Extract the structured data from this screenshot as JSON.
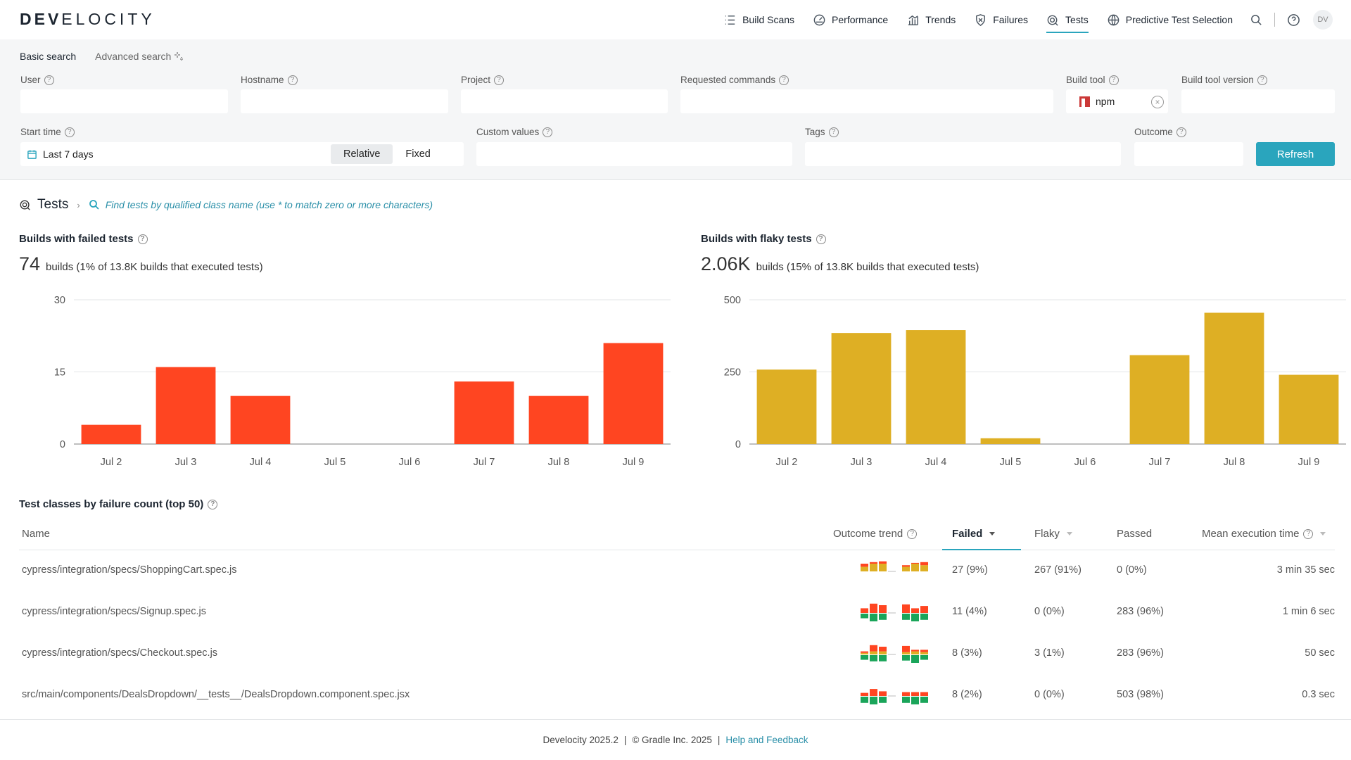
{
  "brand": {
    "logo_bold": "DEV",
    "logo_thin": "ELOCITY"
  },
  "nav": {
    "items": [
      {
        "label": "Build Scans",
        "icon": "list-icon"
      },
      {
        "label": "Performance",
        "icon": "gauge-icon"
      },
      {
        "label": "Trends",
        "icon": "bar-chart-icon"
      },
      {
        "label": "Failures",
        "icon": "shield-x-icon"
      },
      {
        "label": "Tests",
        "icon": "tests-icon"
      },
      {
        "label": "Predictive Test Selection",
        "icon": "globe-icon"
      }
    ],
    "active": "Tests",
    "avatar": "DV"
  },
  "search": {
    "tabs": {
      "basic": "Basic search",
      "advanced": "Advanced search"
    },
    "fields": {
      "user": "User",
      "hostname": "Hostname",
      "project": "Project",
      "requested_commands": "Requested commands",
      "build_tool": "Build tool",
      "build_tool_version": "Build tool version",
      "start_time": "Start time",
      "custom_values": "Custom values",
      "tags": "Tags",
      "outcome": "Outcome"
    },
    "build_tool_value": "npm",
    "start_time_value": "Last 7 days",
    "relative": "Relative",
    "fixed": "Fixed",
    "refresh": "Refresh"
  },
  "tests": {
    "title": "Tests",
    "find_placeholder": "Find tests by qualified class name (use * to match zero or more characters)"
  },
  "failed_panel": {
    "title": "Builds with failed tests",
    "count": "74",
    "summary": "builds (1% of 13.8K builds that executed tests)"
  },
  "flaky_panel": {
    "title": "Builds with flaky tests",
    "count": "2.06K",
    "summary": "builds (15% of 13.8K builds that executed tests)"
  },
  "chart_data": [
    {
      "type": "bar",
      "categories": [
        "Jul 2",
        "Jul 3",
        "Jul 4",
        "Jul 5",
        "Jul 6",
        "Jul 7",
        "Jul 8",
        "Jul 9"
      ],
      "values": [
        4,
        16,
        10,
        0,
        0,
        13,
        10,
        21
      ],
      "yticks": [
        0,
        15,
        30
      ],
      "ylim": [
        0,
        30
      ],
      "color": "#ff4521",
      "grid": true
    },
    {
      "type": "bar",
      "categories": [
        "Jul 2",
        "Jul 3",
        "Jul 4",
        "Jul 5",
        "Jul 6",
        "Jul 7",
        "Jul 8",
        "Jul 9"
      ],
      "values": [
        258,
        385,
        395,
        20,
        0,
        308,
        455,
        240
      ],
      "yticks": [
        0,
        250,
        500
      ],
      "ylim": [
        0,
        500
      ],
      "color": "#deaf24",
      "grid": true
    }
  ],
  "table": {
    "title": "Test classes by failure count (top 50)",
    "headers": {
      "name": "Name",
      "trend": "Outcome trend",
      "failed": "Failed",
      "flaky": "Flaky",
      "passed": "Passed",
      "mean": "Mean execution time"
    },
    "rows": [
      {
        "name": "cypress/integration/specs/ShoppingCart.spec.js",
        "failed": "27 (9%)",
        "flaky": "267 (91%)",
        "passed": "0 (0%)",
        "mean": "3 min 35 sec",
        "trend": [
          [
            0.2,
            0.3,
            0
          ],
          [
            0.1,
            0.5,
            0
          ],
          [
            0.15,
            0.5,
            0
          ],
          [
            0,
            0,
            0
          ],
          [
            0.1,
            0.3,
            0
          ],
          [
            0.05,
            0.5,
            0
          ],
          [
            0.2,
            0.4,
            0
          ]
        ]
      },
      {
        "name": "cypress/integration/specs/Signup.spec.js",
        "failed": "11 (4%)",
        "flaky": "0 (0%)",
        "passed": "283 (96%)",
        "mean": "1 min 6 sec",
        "trend": [
          [
            0.3,
            0,
            0.3
          ],
          [
            0.6,
            0,
            0.5
          ],
          [
            0.5,
            0,
            0.4
          ],
          [
            0,
            0,
            0
          ],
          [
            0.55,
            0,
            0.4
          ],
          [
            0.3,
            0,
            0.5
          ],
          [
            0.45,
            0,
            0.4
          ]
        ]
      },
      {
        "name": "cypress/integration/specs/Checkout.spec.js",
        "failed": "8 (3%)",
        "flaky": "3 (1%)",
        "passed": "283 (96%)",
        "mean": "50 sec",
        "trend": [
          [
            0.1,
            0.1,
            0.3
          ],
          [
            0.4,
            0.2,
            0.4
          ],
          [
            0.3,
            0.2,
            0.4
          ],
          [
            0,
            0,
            0
          ],
          [
            0.4,
            0.15,
            0.35
          ],
          [
            0.1,
            0.2,
            0.5
          ],
          [
            0.15,
            0.15,
            0.3
          ]
        ]
      },
      {
        "name": "src/main/components/DealsDropdown/__tests__/DealsDropdown.component.spec.jsx",
        "failed": "8 (2%)",
        "flaky": "0 (0%)",
        "passed": "503 (98%)",
        "mean": "0.3 sec",
        "trend": [
          [
            0.2,
            0,
            0.4
          ],
          [
            0.45,
            0,
            0.5
          ],
          [
            0.3,
            0,
            0.4
          ],
          [
            0,
            0,
            0
          ],
          [
            0.25,
            0,
            0.4
          ],
          [
            0.25,
            0,
            0.5
          ],
          [
            0.25,
            0,
            0.4
          ]
        ]
      }
    ]
  },
  "footer": {
    "version": "Develocity 2025.2",
    "copyright": "© Gradle Inc. 2025",
    "help": "Help and Feedback"
  }
}
